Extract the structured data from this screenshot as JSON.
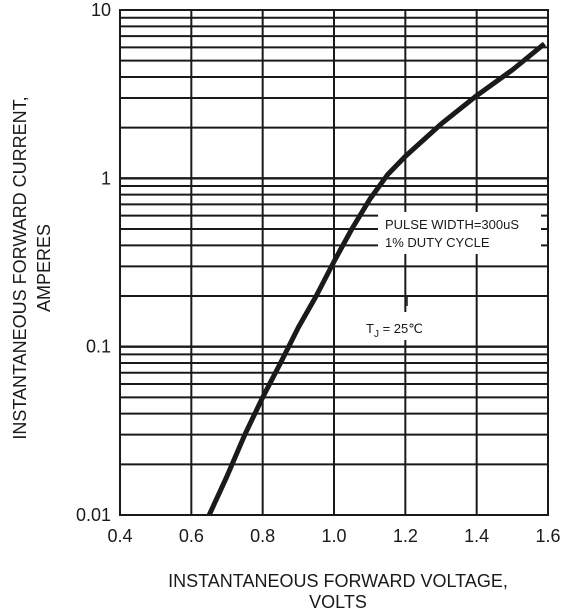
{
  "chart_data": {
    "type": "line",
    "xlabel_lines": [
      "INSTANTANEOUS FORWARD VOLTAGE,",
      "VOLTS"
    ],
    "ylabel_lines": [
      "INSTANTANEOUS FORWARD CURRENT,",
      "AMPERES"
    ],
    "x_axis": {
      "range": [
        0.4,
        1.6
      ],
      "scale": "linear",
      "ticks": [
        "0.4",
        "0.6",
        "0.8",
        "1.0",
        "1.2",
        "1.4",
        "1.6"
      ]
    },
    "y_axis": {
      "range": [
        0.01,
        10
      ],
      "scale": "log",
      "ticks": [
        "0.01",
        "0.1",
        "1",
        "10"
      ]
    },
    "grid": true,
    "annotations": {
      "pulse": "PULSE WIDTH=300uS",
      "duty": "1% DUTY CYCLE",
      "tj_main": "T",
      "tj_sub": "J",
      "tj_value": " = 25℃"
    },
    "series": [
      {
        "x": [
          0.65,
          0.7,
          0.75,
          0.8,
          0.85,
          0.9,
          0.95,
          1.0,
          1.05,
          1.1,
          1.15,
          1.2,
          1.3,
          1.4,
          1.5,
          1.59
        ],
        "y": [
          0.01,
          0.017,
          0.03,
          0.05,
          0.08,
          0.13,
          0.2,
          0.32,
          0.5,
          0.75,
          1.05,
          1.35,
          2.1,
          3.1,
          4.4,
          6.3
        ]
      }
    ]
  }
}
